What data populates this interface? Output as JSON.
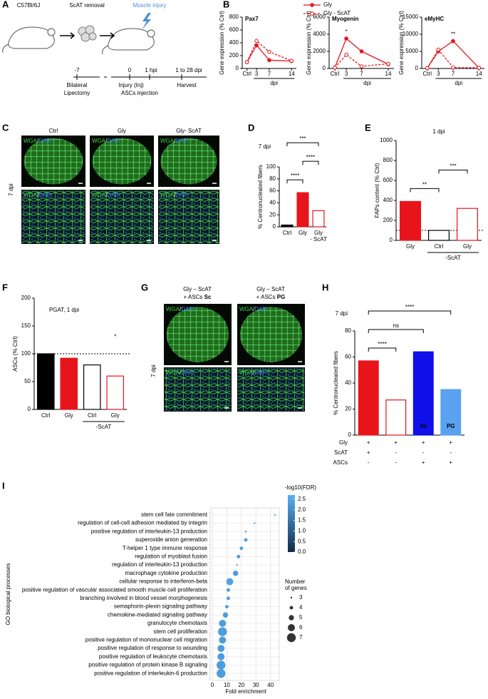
{
  "panel_labels": [
    "A",
    "B",
    "C",
    "D",
    "E",
    "F",
    "G",
    "H",
    "I"
  ],
  "A": {
    "strain": "C57Bl/6J",
    "step1": "ScAT removal",
    "step2": "Muscle injury",
    "timeline": [
      "-7",
      "0",
      "1 hpi",
      "1 to 28 dpi"
    ],
    "events": [
      "Bilateral",
      "Lipectomy",
      "Injury (Inj)",
      "ASCs injection",
      "Harvest"
    ]
  },
  "C": {
    "columns": [
      "Ctrl",
      "Gly",
      "Gly- ScAT"
    ],
    "stain": {
      "a": "WGA",
      "sep": "/",
      "b": "DAPI"
    },
    "row_label": "7 dpi"
  },
  "G": {
    "columns": [
      {
        "line1": "Gly – ScAT",
        "line2": "+ ASCs ",
        "bold": "Sc"
      },
      {
        "line1": "Gly – ScAT",
        "line2": "+ ASCs ",
        "bold": "PG"
      }
    ],
    "stain": {
      "a": "WGA",
      "sep": "/",
      "b": "DAPI"
    },
    "row_label": "7 dpi"
  },
  "chart_data": [
    {
      "type": "line",
      "title": "Pax7",
      "ylabel": "Gene expression (% Ctrl)",
      "xlabel": "dpi",
      "x": [
        0,
        3,
        7,
        14
      ],
      "xlim": [
        -1.5,
        15.5
      ],
      "xticks": [
        {
          "value": 0,
          "label": "Ctrl"
        },
        3,
        7,
        14
      ],
      "ylim": [
        0,
        800
      ],
      "yticks": [
        0,
        200,
        400,
        600,
        800
      ],
      "legend": true,
      "series": [
        {
          "name": "Gly",
          "color": "#e8141b",
          "dash": false,
          "values": [
            100,
            360,
            130,
            115
          ]
        },
        {
          "name": "Gly - ScAT",
          "color": "#e8141b",
          "dash": true,
          "values": [
            100,
            430,
            260,
            120
          ]
        }
      ]
    },
    {
      "type": "line",
      "title": "Myogenin",
      "ylabel": "Gene expression (% Ctrl)",
      "xlabel": "dpi",
      "x": [
        0,
        3,
        7,
        14
      ],
      "xlim": [
        -1.5,
        15.5
      ],
      "xticks": [
        {
          "value": 0,
          "label": "Ctrl"
        },
        3,
        7,
        14
      ],
      "ylim": [
        0,
        6000
      ],
      "yticks": [
        0,
        2000,
        4000,
        6000
      ],
      "legend": false,
      "annotations": [
        {
          "text": "*",
          "x": 3
        }
      ],
      "series": [
        {
          "name": "Gly",
          "color": "#e8141b",
          "dash": false,
          "values": [
            100,
            3500,
            2000,
            500
          ]
        },
        {
          "name": "Gly - ScAT",
          "color": "#e8141b",
          "dash": true,
          "values": [
            100,
            1600,
            250,
            550
          ]
        }
      ]
    },
    {
      "type": "line",
      "title": "eMyHC",
      "ylabel": "Gene expression (% Ctrl)",
      "xlabel": "dpi",
      "x": [
        0,
        3,
        7,
        14
      ],
      "xlim": [
        -1.5,
        15.5
      ],
      "xticks": [
        {
          "value": 0,
          "label": "Ctrl"
        },
        3,
        7,
        14
      ],
      "ylim": [
        0,
        15000
      ],
      "yticks": [
        0,
        5000,
        10000,
        15000
      ],
      "legend": false,
      "annotations": [
        {
          "text": "**",
          "x": 7
        }
      ],
      "series": [
        {
          "name": "Gly",
          "color": "#e8141b",
          "dash": false,
          "values": [
            100,
            5000,
            8000,
            200
          ]
        },
        {
          "name": "Gly - ScAT",
          "color": "#e8141b",
          "dash": true,
          "values": [
            100,
            5500,
            300,
            200
          ]
        }
      ]
    },
    {
      "type": "bar",
      "title": "7 dpi",
      "ylabel": "% Centronucleated fibers",
      "categories": [
        "Ctrl",
        "Gly",
        [
          "Gly",
          "- ScAT"
        ]
      ],
      "values": [
        3,
        57,
        27
      ],
      "colors": [
        "#000000",
        "#e8141b",
        "#ffffff"
      ],
      "edgecolors": [
        "#000000",
        "#e8141b",
        "#e8141b"
      ],
      "ylim": [
        0,
        100
      ],
      "yticks": [
        0,
        20,
        40,
        60,
        80,
        100
      ],
      "annotations": [
        {
          "text": "****",
          "from": 0,
          "to": 1
        },
        {
          "text": "****",
          "from": 1,
          "to": 2
        },
        {
          "text": "***",
          "from": 0,
          "to": 2
        }
      ]
    },
    {
      "type": "bar",
      "title": "1 dpi",
      "ylabel": "FAPs content (% Ctrl)",
      "categories": [
        "Gly",
        "Ctrl",
        "Gly"
      ],
      "values": [
        390,
        100,
        320
      ],
      "colors": [
        "#e8141b",
        "#ffffff",
        "#ffffff"
      ],
      "edgecolors": [
        "#e8141b",
        "#000000",
        "#e8141b"
      ],
      "ylim": [
        0,
        1000
      ],
      "yticks": [
        0,
        200,
        400,
        600,
        800,
        1000
      ],
      "refline": 100,
      "groups": [
        {
          "label": "-ScAT",
          "from": 1,
          "to": 2
        }
      ],
      "annotations": [
        {
          "text": "**",
          "from": 0,
          "to": 1
        },
        {
          "text": "***",
          "from": 1,
          "to": 2
        }
      ]
    },
    {
      "type": "bar",
      "title": "PGAT, 1 dpi",
      "ylabel": "ASCs (% Ctrl)",
      "categories": [
        "Ctrl",
        "Gly",
        "Ctrl",
        "Gly"
      ],
      "values": [
        100,
        92,
        80,
        60
      ],
      "colors": [
        "#000000",
        "#e8141b",
        "#ffffff",
        "#ffffff"
      ],
      "edgecolors": [
        "#000000",
        "#e8141b",
        "#000000",
        "#e8141b"
      ],
      "ylim": [
        0,
        200
      ],
      "yticks": [
        0,
        50,
        100,
        150,
        200
      ],
      "refline": 100,
      "groups": [
        {
          "label": "-ScAT",
          "from": 2,
          "to": 3
        }
      ],
      "marks": [
        {
          "text": "*",
          "at": 3
        }
      ]
    },
    {
      "type": "bar",
      "title": "7 dpi",
      "ylabel": "% Centronucleated fibers",
      "values": [
        57,
        27,
        64,
        35
      ],
      "colors": [
        "#e8141b",
        "#ffffff",
        "#1010e8",
        "#5aa2f0"
      ],
      "edgecolors": [
        "#e8141b",
        "#e8141b",
        "#1010e8",
        "#5aa2f0"
      ],
      "bar_text": [
        null,
        null,
        "Sc",
        "PG"
      ],
      "ylim": [
        0,
        80
      ],
      "yticks": [
        0,
        20,
        40,
        60,
        80
      ],
      "annotations": [
        {
          "text": "****",
          "from": 0,
          "to": 1
        },
        {
          "text": "ns",
          "from": 0,
          "to": 2
        },
        {
          "text": "****",
          "from": 0,
          "to": 3
        }
      ],
      "table": [
        [
          "Gly",
          "+",
          "+",
          "+",
          "+"
        ],
        [
          "ScAT",
          "+",
          "-",
          "-",
          "-"
        ],
        [
          "ASCs",
          "-",
          "-",
          "+",
          "+"
        ]
      ]
    },
    {
      "type": "scatter",
      "ylabel": "GO biological processes",
      "xlabel": "Fold enrichment",
      "xlim": [
        0,
        46
      ],
      "xticks": [
        0,
        10,
        20,
        30,
        40
      ],
      "grid": true,
      "categories": [
        "stem cell fate commitment",
        "regulation of cell-cell adhesion mediated by integrin",
        "positive regulation of interleukin-13 production",
        "superoxide anion generation",
        "T-helper 1 type immune response",
        "regulation of myoblast fusion",
        "regulation of interleukin-13 production",
        "macrophage cytokine production",
        "cellular response to interferon-beta",
        "positive regulation of vascular associated smooth muscle cell proliferation",
        "branching involved in blood vessel morphogenesis",
        "semaphorin-plexin signaling pathway",
        "chemokine-mediated signaling pathway",
        "granulocyte chemotaxis",
        "stem cell proliferation",
        "positive regulation of mononuclear cell migration",
        "positive regulation of response to wounding",
        "positive regulation of leukocyte chemotaxis",
        "positive regulation of protein kinase B signaling",
        "positive regulation of interleukin-6 production"
      ],
      "values": [
        43,
        29,
        23,
        23,
        20,
        18,
        17,
        16,
        12,
        11,
        11,
        10,
        9,
        7,
        7,
        7,
        6,
        6,
        6,
        6
      ],
      "genes": [
        3,
        3,
        3,
        4,
        4,
        4,
        3,
        5,
        6,
        4,
        4,
        4,
        5,
        6,
        7,
        6,
        6,
        6,
        7,
        7
      ],
      "fdr": [
        2.6,
        2.4,
        2.4,
        2.3,
        2.3,
        2.3,
        2.3,
        2.3,
        2.4,
        2.3,
        2.3,
        2.3,
        2.3,
        2.3,
        2.3,
        2.3,
        2.3,
        2.3,
        2.3,
        2.3
      ],
      "colorbar": {
        "title": "-log10(FDR)",
        "lim": [
          0,
          2.7
        ],
        "colors": [
          "#132b43",
          "#56b1f7"
        ],
        "ticks": [
          {
            "value": 0,
            "label": "0.0"
          },
          {
            "value": 0.5,
            "label": "0.5"
          },
          {
            "value": 1,
            "label": "1.0"
          },
          {
            "value": 1.5,
            "label": "1.5"
          },
          {
            "value": 2,
            "label": "2.0"
          },
          {
            "value": 2.5,
            "label": "2.5"
          }
        ]
      },
      "size_legend": {
        "title": [
          "Number",
          "of genes"
        ],
        "values": [
          3,
          4,
          5,
          6,
          7
        ]
      }
    }
  ]
}
